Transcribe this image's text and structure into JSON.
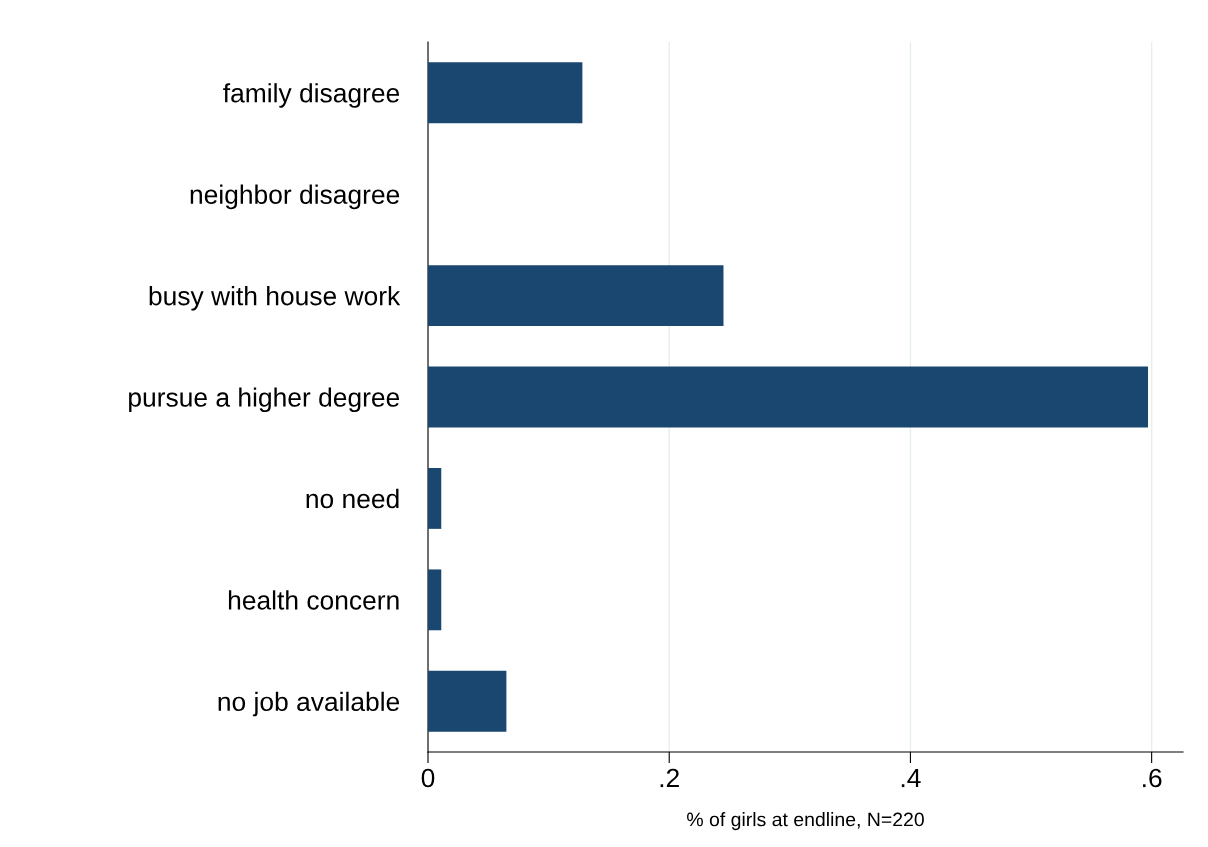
{
  "chart_data": {
    "type": "bar",
    "orientation": "horizontal",
    "xlabel": "% of girls at endline, N=220",
    "categories": [
      "family disagree",
      "neighbor disagree",
      "busy with house work",
      "pursue a higher degree",
      "no need",
      "health concern",
      "no job available"
    ],
    "values": [
      0.128,
      0,
      0.245,
      0.597,
      0.011,
      0.011,
      0.065
    ],
    "color": "#1a476f",
    "xlim": [
      0,
      0.626
    ],
    "xticks": [
      0,
      {
        "value": 0.2,
        "label": ".2"
      },
      {
        "value": 0.4,
        "label": ".4"
      },
      {
        "value": 0.6,
        "label": ".6"
      }
    ],
    "grid": "x"
  }
}
